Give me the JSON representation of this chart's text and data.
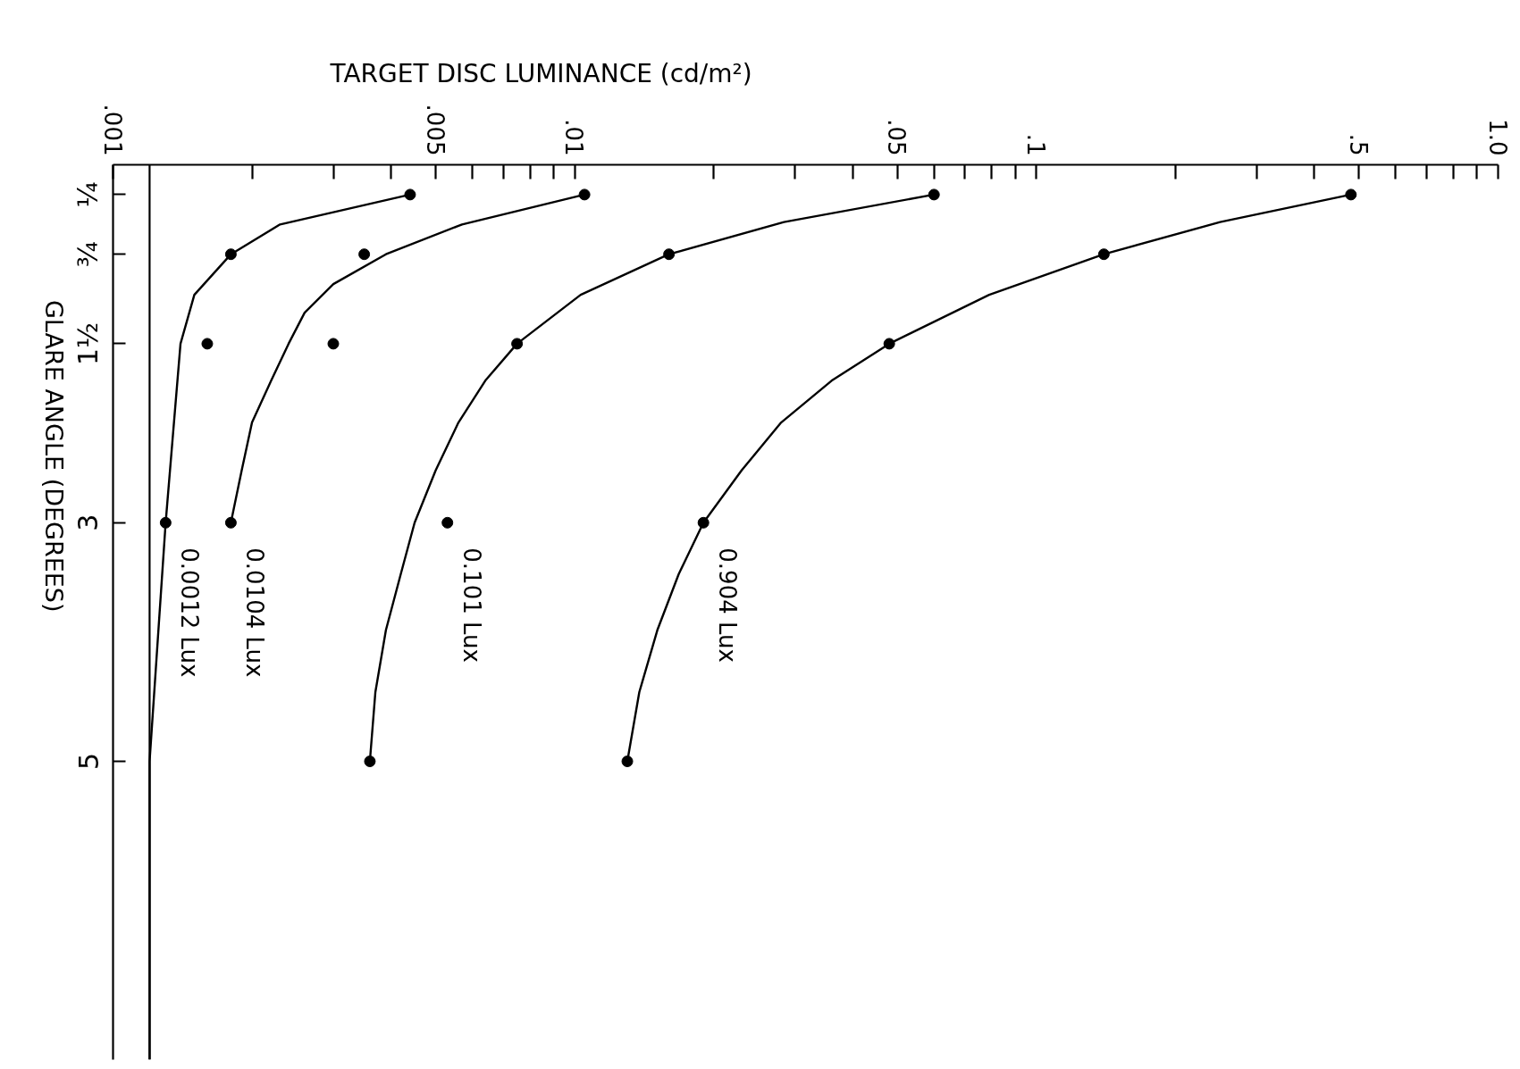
{
  "chart_data": {
    "type": "scatter",
    "xlabel": "TARGET DISC LUMINANCE (cd/m²)",
    "ylabel": "GLARE ANGLE (DEGREES)",
    "log": "x",
    "xlim": [
      0.001,
      1
    ],
    "ylim": [
      7.5,
      0
    ],
    "xticks": [
      {
        "value": 0.001,
        "label": ".001"
      },
      {
        "value": 0.002,
        "label": null
      },
      {
        "value": 0.003,
        "label": null
      },
      {
        "value": 0.004,
        "label": null
      },
      {
        "value": 0.005,
        "label": ".005"
      },
      {
        "value": 0.006,
        "label": null
      },
      {
        "value": 0.007,
        "label": null
      },
      {
        "value": 0.008,
        "label": null
      },
      {
        "value": 0.009,
        "label": null
      },
      {
        "value": 0.01,
        "label": ".01"
      },
      {
        "value": 0.02,
        "label": null
      },
      {
        "value": 0.03,
        "label": null
      },
      {
        "value": 0.04,
        "label": null
      },
      {
        "value": 0.05,
        "label": ".05"
      },
      {
        "value": 0.06,
        "label": null
      },
      {
        "value": 0.07,
        "label": null
      },
      {
        "value": 0.08,
        "label": null
      },
      {
        "value": 0.09,
        "label": null
      },
      {
        "value": 0.1,
        "label": ".1"
      },
      {
        "value": 0.2,
        "label": null
      },
      {
        "value": 0.3,
        "label": null
      },
      {
        "value": 0.4,
        "label": null
      },
      {
        "value": 0.5,
        "label": ".5"
      },
      {
        "value": 0.6,
        "label": null
      },
      {
        "value": 0.7,
        "label": null
      },
      {
        "value": 0.8,
        "label": null
      },
      {
        "value": 0.9,
        "label": null
      },
      {
        "value": 1,
        "label": "1.0"
      }
    ],
    "yticks": [
      {
        "value": 0.25,
        "label": "¼"
      },
      {
        "value": 0.75,
        "label": "¾"
      },
      {
        "value": 1.5,
        "label": "1½"
      },
      3,
      5
    ],
    "marker": "circle",
    "line_style": "solid",
    "ref_lines": [
      {
        "axis": "x",
        "value": 0.0012,
        "color": "#000000"
      }
    ],
    "series": [
      {
        "type": "line",
        "marker": "none",
        "color": "#000000",
        "x": [
          0.0044,
          0.0023,
          0.0018,
          0.0015,
          0.0014,
          0.0013,
          0.0012,
          0.0012
        ],
        "values": [
          0.25,
          0.5,
          0.75,
          1.09,
          1.5,
          3,
          5,
          7.5
        ]
      },
      {
        "name": "0.0012 Lux",
        "color": "#000000",
        "x": [
          0.0044,
          0.0018,
          0.0016,
          0.0013
        ],
        "values": [
          0.25,
          0.75,
          1.5,
          3
        ]
      },
      {
        "type": "line",
        "marker": "none",
        "color": "#000000",
        "x": [
          0.0105,
          0.0057,
          0.0039,
          0.003,
          0.0026,
          0.0024,
          0.0022,
          0.002,
          0.0019,
          0.0018
        ],
        "values": [
          0.25,
          0.5,
          0.75,
          1,
          1.24,
          1.5,
          1.81,
          2.16,
          2.56,
          3
        ]
      },
      {
        "name": "0.0104 Lux",
        "color": "#000000",
        "x": [
          0.0105,
          0.0035,
          0.003,
          0.0018
        ],
        "values": [
          0.25,
          0.75,
          1.5,
          3
        ]
      },
      {
        "type": "line",
        "marker": "none",
        "color": "#000000",
        "x": [
          0.06,
          0.0284,
          0.016,
          0.0103,
          0.0075,
          0.0064,
          0.0056,
          0.005,
          0.0045,
          0.0042,
          0.0039,
          0.0037,
          0.0036
        ],
        "values": [
          0.25,
          0.48,
          0.75,
          1.09,
          1.5,
          1.81,
          2.16,
          2.56,
          3,
          3.43,
          3.9,
          4.42,
          5
        ]
      },
      {
        "name": "0.101 Lux",
        "color": "#000000",
        "x": [
          0.06,
          0.016,
          0.0075,
          0.0053,
          0.0036
        ],
        "values": [
          0.25,
          0.75,
          1.5,
          3,
          5
        ]
      },
      {
        "type": "line",
        "marker": "none",
        "color": "#000000",
        "x": [
          0.48,
          0.25,
          0.14,
          0.079,
          0.048,
          0.036,
          0.028,
          0.023,
          0.019,
          0.0168,
          0.0151,
          0.0138,
          0.013
        ],
        "values": [
          0.25,
          0.48,
          0.75,
          1.09,
          1.5,
          1.81,
          2.16,
          2.56,
          3,
          3.43,
          3.9,
          4.42,
          5
        ]
      },
      {
        "name": "0.904 Lux",
        "color": "#000000",
        "x": [
          0.48,
          0.14,
          0.048,
          0.019,
          0.013
        ],
        "values": [
          0.25,
          0.75,
          1.5,
          3,
          5
        ]
      }
    ]
  }
}
